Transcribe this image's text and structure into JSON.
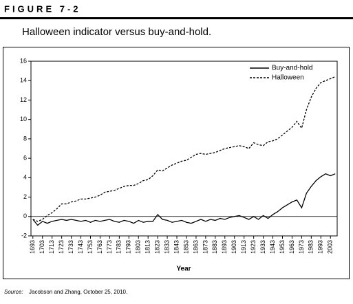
{
  "chart_data": {
    "type": "line",
    "figure_label": "FIGURE 7-2",
    "title": "Halloween indicator versus buy-and-hold.",
    "x_label": "Year",
    "source_label": "Source:",
    "source": "Jacobson and Zhang, October 25, 2010.",
    "x": [
      1693,
      1698,
      1703,
      1708,
      1713,
      1718,
      1723,
      1728,
      1733,
      1738,
      1743,
      1748,
      1753,
      1758,
      1763,
      1768,
      1773,
      1778,
      1783,
      1788,
      1793,
      1798,
      1803,
      1808,
      1813,
      1818,
      1823,
      1828,
      1833,
      1838,
      1843,
      1848,
      1853,
      1858,
      1863,
      1868,
      1873,
      1878,
      1883,
      1888,
      1893,
      1898,
      1903,
      1908,
      1913,
      1918,
      1923,
      1928,
      1933,
      1938,
      1943,
      1948,
      1953,
      1958,
      1963,
      1968,
      1973,
      1978,
      1983,
      1988,
      1993,
      1998,
      2003,
      2008
    ],
    "series": [
      {
        "name": "Buy-and-hold",
        "color": "#000000",
        "dash": false,
        "values": [
          -0.3,
          -0.9,
          -0.5,
          -0.7,
          -0.5,
          -0.4,
          -0.3,
          -0.4,
          -0.3,
          -0.4,
          -0.5,
          -0.4,
          -0.6,
          -0.4,
          -0.5,
          -0.4,
          -0.3,
          -0.5,
          -0.6,
          -0.4,
          -0.5,
          -0.7,
          -0.4,
          -0.6,
          -0.5,
          -0.5,
          0.2,
          -0.3,
          -0.4,
          -0.6,
          -0.5,
          -0.4,
          -0.6,
          -0.7,
          -0.5,
          -0.3,
          -0.5,
          -0.3,
          -0.4,
          -0.2,
          -0.3,
          -0.1,
          0.0,
          0.1,
          -0.1,
          -0.3,
          0.0,
          -0.3,
          0.1,
          -0.2,
          0.2,
          0.5,
          0.9,
          1.2,
          1.5,
          1.7,
          0.9,
          2.4,
          3.1,
          3.7,
          4.1,
          4.4,
          4.2,
          4.4
        ]
      },
      {
        "name": "Halloween",
        "color": "#000000",
        "dash": true,
        "values": [
          -0.3,
          -0.5,
          -0.3,
          0.1,
          0.4,
          0.8,
          1.3,
          1.3,
          1.5,
          1.6,
          1.8,
          1.8,
          1.9,
          2.0,
          2.2,
          2.5,
          2.6,
          2.7,
          2.9,
          3.1,
          3.2,
          3.2,
          3.4,
          3.7,
          3.8,
          4.2,
          4.8,
          4.7,
          5.0,
          5.3,
          5.5,
          5.7,
          5.8,
          6.1,
          6.4,
          6.5,
          6.4,
          6.5,
          6.6,
          6.8,
          7.0,
          7.1,
          7.2,
          7.3,
          7.2,
          7.0,
          7.6,
          7.4,
          7.3,
          7.7,
          7.8,
          8.0,
          8.4,
          8.8,
          9.2,
          9.8,
          9.1,
          11.0,
          12.3,
          13.2,
          13.8,
          14.0,
          14.2,
          14.4
        ]
      }
    ],
    "xlim": [
      1691,
      2010
    ],
    "xticks": [
      1693,
      1703,
      1713,
      1723,
      1733,
      1743,
      1753,
      1763,
      1773,
      1783,
      1793,
      1803,
      1813,
      1823,
      1833,
      1843,
      1853,
      1863,
      1873,
      1883,
      1893,
      1903,
      1913,
      1923,
      1933,
      1943,
      1953,
      1963,
      1973,
      1983,
      1993,
      2003
    ],
    "ylim": [
      -2,
      16
    ],
    "yticks": [
      -2,
      0,
      2,
      4,
      6,
      8,
      10,
      12,
      14,
      16
    ],
    "zero_line": true,
    "legend": "top-right"
  }
}
